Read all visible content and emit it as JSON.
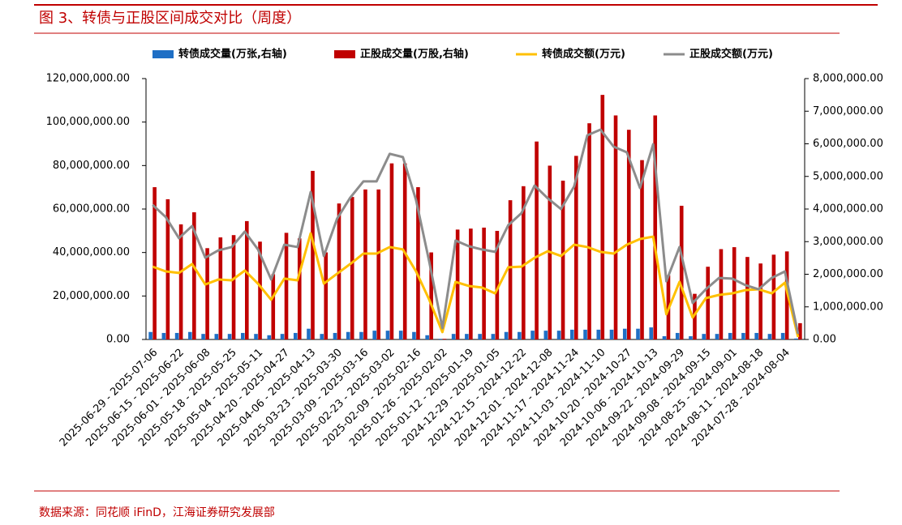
{
  "title": "图 3、转债与正股区间成交对比（周度）",
  "source": "数据来源：同花顺 iFinD，江海证券研究发展部",
  "chart_data": {
    "type": "bar",
    "categories": [
      "2025-06-29 - 2025-07-06",
      null,
      "2025-06-15 - 2025-06-22",
      null,
      "2025-06-01 - 2025-06-08",
      null,
      "2025-05-18 - 2025-05-25",
      null,
      "2025-05-04 - 2025-05-11",
      null,
      "2025-04-20 - 2025-04-27",
      null,
      "2025-04-06 - 2025-04-13",
      null,
      "2025-03-23 - 2025-03-30",
      null,
      "2025-03-09 - 2025-03-16",
      null,
      "2025-02-23 - 2025-03-02",
      null,
      "2025-02-09 - 2025-02-16",
      null,
      "2025-01-26 - 2025-02-02",
      null,
      "2025-01-12 - 2025-01-19",
      null,
      "2024-12-29 - 2025-01-05",
      null,
      "2024-12-15 - 2024-12-22",
      null,
      "2024-12-01 - 2024-12-08",
      null,
      "2024-11-17 - 2024-11-24",
      null,
      "2024-11-03 - 2024-11-10",
      null,
      "2024-10-20 - 2024-10-27",
      null,
      "2024-10-06 - 2024-10-13",
      null,
      "2024-09-22 - 2024-09-29",
      null,
      "2024-09-08 - 2024-09-15",
      null,
      "2024-08-25 - 2024-09-01",
      null,
      "2024-08-11 - 2024-08-18",
      null,
      "2024-07-28 - 2024-08-04",
      null
    ],
    "series": [
      {
        "name": "转债成交量(万张,右轴)",
        "type": "bar",
        "axis": "y2",
        "color": "#1f6fc5",
        "values": [
          230000,
          200000,
          200000,
          230000,
          170000,
          170000,
          170000,
          200000,
          170000,
          130000,
          170000,
          200000,
          330000,
          170000,
          200000,
          230000,
          230000,
          270000,
          270000,
          270000,
          230000,
          130000,
          20000,
          170000,
          170000,
          170000,
          170000,
          230000,
          230000,
          270000,
          270000,
          270000,
          300000,
          300000,
          300000,
          300000,
          330000,
          330000,
          370000,
          100000,
          200000,
          100000,
          170000,
          170000,
          200000,
          200000,
          200000,
          170000,
          200000,
          30000
        ]
      },
      {
        "name": "正股成交量(万股,右轴)",
        "type": "bar",
        "axis": "y2",
        "color": "#c00000",
        "values": [
          4670000,
          4300000,
          3530000,
          3900000,
          2800000,
          3130000,
          3200000,
          3630000,
          3000000,
          2000000,
          3270000,
          3100000,
          5170000,
          2670000,
          4170000,
          4370000,
          4600000,
          4600000,
          5400000,
          5400000,
          4670000,
          2670000,
          20000,
          3370000,
          3400000,
          3430000,
          3330000,
          4270000,
          4700000,
          6070000,
          5330000,
          4870000,
          5630000,
          6630000,
          7500000,
          6870000,
          6430000,
          5500000,
          6870000,
          1970000,
          4100000,
          1400000,
          2230000,
          2770000,
          2830000,
          2530000,
          2330000,
          2600000,
          2700000,
          500000
        ]
      },
      {
        "name": "转债成交额(万元)",
        "type": "line",
        "color": "#ffc000",
        "values": [
          33500000,
          31300000,
          30600000,
          34700000,
          25300000,
          27600000,
          27200000,
          31700000,
          25700000,
          18300000,
          28000000,
          27200000,
          48800000,
          25700000,
          30200000,
          34700000,
          39500000,
          39500000,
          42500000,
          41400000,
          31300000,
          18300000,
          3400000,
          26500000,
          24600000,
          23900000,
          21200000,
          33200000,
          33500000,
          37600000,
          40600000,
          38400000,
          43600000,
          42500000,
          40300000,
          39500000,
          43600000,
          46200000,
          47300000,
          11600000,
          26500000,
          10100000,
          19000000,
          20500000,
          21200000,
          22700000,
          23100000,
          21200000,
          26100000,
          1100000
        ]
      },
      {
        "name": "正股成交额(万元)",
        "type": "line",
        "color": "#8c8c8c",
        "values": [
          61900000,
          56300000,
          46600000,
          52200000,
          37600000,
          41000000,
          42500000,
          49600000,
          41400000,
          27600000,
          43600000,
          42500000,
          67800000,
          38400000,
          55500000,
          65200000,
          72700000,
          72700000,
          85400000,
          83900000,
          64100000,
          35800000,
          5200000,
          45500000,
          42900000,
          41400000,
          40300000,
          52600000,
          58100000,
          70800000,
          64900000,
          60000000,
          70400000,
          93900000,
          96500000,
          88700000,
          86100000,
          69700000,
          89800000,
          26800000,
          42500000,
          16800000,
          23100000,
          28300000,
          28000000,
          25000000,
          23100000,
          28300000,
          31300000,
          2600000
        ]
      }
    ],
    "ylim": [
      0,
      120000000
    ],
    "yticks": [
      {
        "value": 0,
        "label": "0.00"
      },
      {
        "value": 20000000,
        "label": "20,000,000.00"
      },
      {
        "value": 40000000,
        "label": "40,000,000.00"
      },
      {
        "value": 60000000,
        "label": "60,000,000.00"
      },
      {
        "value": 80000000,
        "label": "80,000,000.00"
      },
      {
        "value": 100000000,
        "label": "100,000,000.00"
      },
      {
        "value": 120000000,
        "label": "120,000,000.00"
      }
    ],
    "y2lim": [
      0,
      8000000
    ],
    "y2ticks": [
      {
        "value": 0,
        "label": "0.00"
      },
      {
        "value": 1000000,
        "label": "1,000,000.00"
      },
      {
        "value": 2000000,
        "label": "2,000,000.00"
      },
      {
        "value": 3000000,
        "label": "3,000,000.00"
      },
      {
        "value": 4000000,
        "label": "4,000,000.00"
      },
      {
        "value": 5000000,
        "label": "5,000,000.00"
      },
      {
        "value": 6000000,
        "label": "6,000,000.00"
      },
      {
        "value": 7000000,
        "label": "7,000,000.00"
      },
      {
        "value": 8000000,
        "label": "8,000,000.00"
      }
    ],
    "legend": "top",
    "grid": false
  }
}
